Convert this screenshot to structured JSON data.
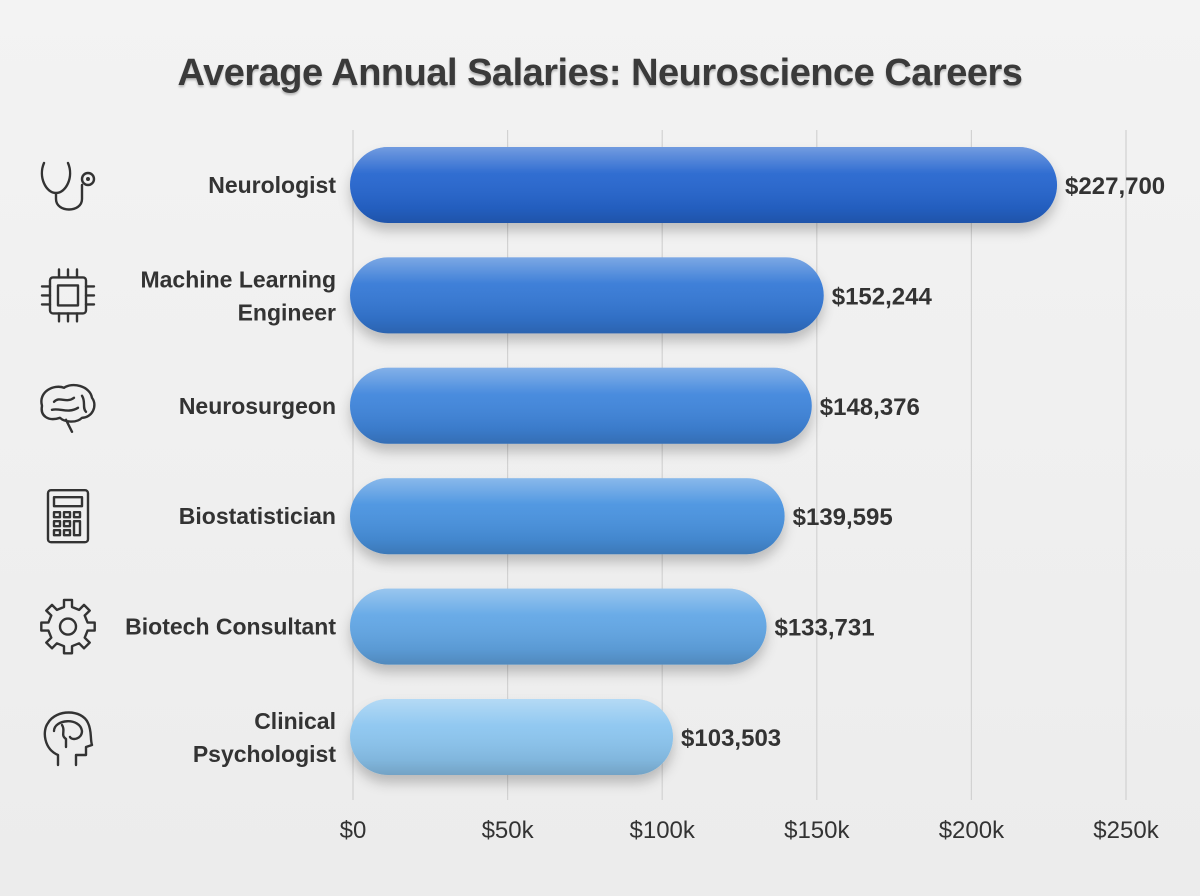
{
  "chart_data": {
    "type": "bar",
    "orientation": "horizontal",
    "title": "Average Annual Salaries: Neuroscience Careers",
    "categories": [
      "Neurologist",
      "Machine Learning Engineer",
      "Neurosurgeon",
      "Biostatistician",
      "Biotech Consultant",
      "Clinical Psychologist"
    ],
    "category_lines": [
      [
        "Neurologist"
      ],
      [
        "Machine Learning",
        "Engineer"
      ],
      [
        "Neurosurgeon"
      ],
      [
        "Biostatistician"
      ],
      [
        "Biotech Consultant"
      ],
      [
        "Clinical",
        "Psychologist"
      ]
    ],
    "values": [
      227700,
      152244,
      148376,
      139595,
      133731,
      103503
    ],
    "value_labels": [
      "$227,700",
      "$152,244",
      "$148,376",
      "$139,595",
      "$133,731",
      "$103,503"
    ],
    "icons": [
      "stethoscope-icon",
      "microchip-icon",
      "brain-icon",
      "calculator-icon",
      "gear-icon",
      "head-brain-icon"
    ],
    "xlim": [
      0,
      250000
    ],
    "xticks": [
      0,
      50000,
      100000,
      150000,
      200000,
      250000
    ],
    "xtick_labels": [
      "$0",
      "$50k",
      "$100k",
      "$150k",
      "$200k",
      "$250k"
    ],
    "xlabel": "",
    "ylabel": "",
    "grid": "vertical",
    "colors": [
      "#2566cf",
      "#3479d6",
      "#3f86dc",
      "#4a93e0",
      "#62a7e6",
      "#8cc6f0"
    ]
  }
}
